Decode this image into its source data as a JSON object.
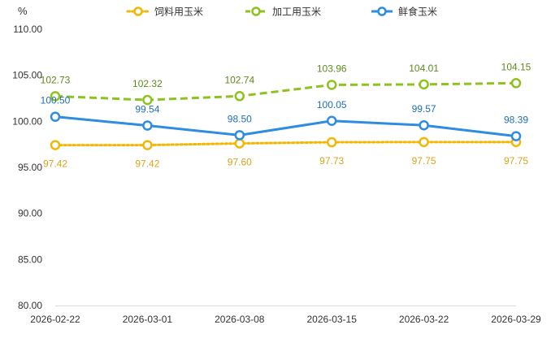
{
  "chart_data": {
    "type": "line",
    "yunit": "%",
    "categories": [
      "2026-02-22",
      "2026-03-01",
      "2026-03-08",
      "2026-03-15",
      "2026-03-22",
      "2026-03-29"
    ],
    "ylim": [
      80,
      110
    ],
    "yticks": [
      80,
      85,
      90,
      95,
      100,
      105,
      110
    ],
    "ytick_labels": [
      "80.00",
      "85.00",
      "90.00",
      "95.00",
      "100.00",
      "105.00",
      "110.00"
    ],
    "grid": false,
    "legend_position": "top-center",
    "series": [
      {
        "name": "饲料用玉米",
        "color": "#F2B705",
        "label_color": "#D9A31A",
        "dash": "dotted",
        "label_position": "below",
        "values": [
          97.42,
          97.42,
          97.6,
          97.73,
          97.75,
          97.75
        ],
        "labels": [
          "97.42",
          "97.42",
          "97.60",
          "97.73",
          "97.75",
          "97.75"
        ]
      },
      {
        "name": "加工用玉米",
        "color": "#8DC21F",
        "label_color": "#5C8A1E",
        "dash": "dashed",
        "label_position": "above",
        "values": [
          102.73,
          102.32,
          102.74,
          103.96,
          104.01,
          104.15
        ],
        "labels": [
          "102.73",
          "102.32",
          "102.74",
          "103.96",
          "104.01",
          "104.15"
        ]
      },
      {
        "name": "鲜食玉米",
        "color": "#2E8DE0",
        "label_color": "#1F6FB8",
        "dash": "solid",
        "label_position": "above",
        "values": [
          100.5,
          99.54,
          98.5,
          100.05,
          99.57,
          98.39
        ],
        "labels": [
          "100.50",
          "99.54",
          "98.50",
          "100.05",
          "99.57",
          "98.39"
        ]
      }
    ]
  }
}
